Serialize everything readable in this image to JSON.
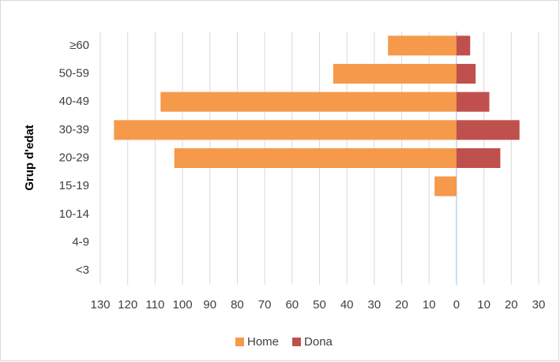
{
  "chart_data": {
    "type": "bar",
    "orientation": "horizontal",
    "stacked": false,
    "y_axis_label": "Grup d'edat",
    "categories": [
      "≥60",
      "50-59",
      "40-49",
      "30-39",
      "20-29",
      "15-19",
      "10-14",
      "4-9",
      "<3"
    ],
    "series": [
      {
        "name": "Home",
        "color": "#f5994a",
        "values": [
          -25,
          -45,
          -108,
          -125,
          -103,
          -8,
          0,
          0,
          0
        ]
      },
      {
        "name": "Dona",
        "color": "#c0504d",
        "values": [
          5,
          7,
          12,
          23,
          16,
          0,
          0,
          0,
          0
        ]
      }
    ],
    "xlim": [
      -130,
      30
    ],
    "xticks": [
      {
        "value": -130,
        "label": "130"
      },
      {
        "value": -120,
        "label": "120"
      },
      {
        "value": -110,
        "label": "110"
      },
      {
        "value": -100,
        "label": "100"
      },
      {
        "value": -90,
        "label": "90"
      },
      {
        "value": -80,
        "label": "80"
      },
      {
        "value": -70,
        "label": "70"
      },
      {
        "value": -60,
        "label": "60"
      },
      {
        "value": -50,
        "label": "50"
      },
      {
        "value": -40,
        "label": "40"
      },
      {
        "value": -30,
        "label": "30"
      },
      {
        "value": -20,
        "label": "20"
      },
      {
        "value": -10,
        "label": "10"
      },
      0,
      10,
      20,
      30
    ],
    "grid": true,
    "legend": "bottom"
  }
}
